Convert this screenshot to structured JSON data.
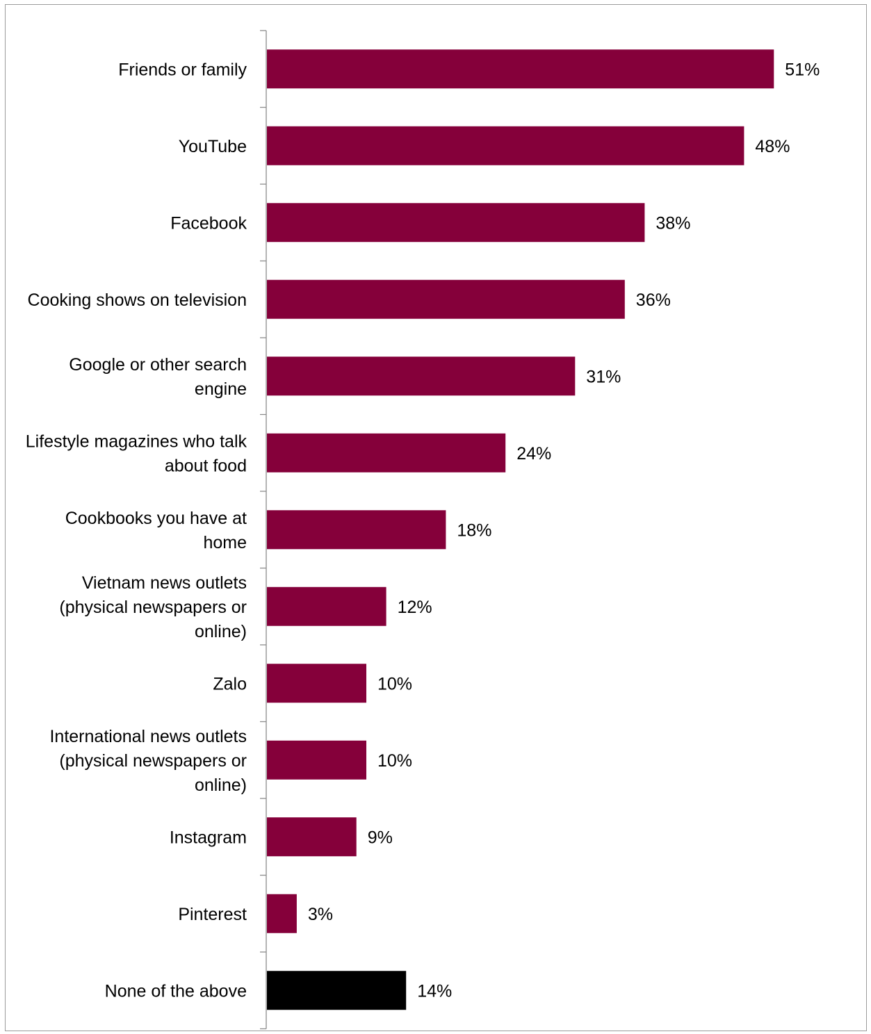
{
  "chart_data": {
    "type": "bar",
    "orientation": "horizontal",
    "categories": [
      "Friends or family",
      "YouTube",
      "Facebook",
      "Cooking shows on television",
      "Google or other search engine",
      "Lifestyle magazines who talk about food",
      "Cookbooks you have at home",
      "Vietnam news outlets (physical newspapers or online)",
      "Zalo",
      "International news outlets (physical newspapers or online)",
      "Instagram",
      "Pinterest",
      "None of the above"
    ],
    "category_lines": [
      [
        "Friends or family"
      ],
      [
        "YouTube"
      ],
      [
        "Facebook"
      ],
      [
        "Cooking shows on television"
      ],
      [
        "Google or other search",
        "engine"
      ],
      [
        "Lifestyle magazines who talk",
        "about food"
      ],
      [
        "Cookbooks you have at",
        "home"
      ],
      [
        "Vietnam news outlets",
        "(physical newspapers or",
        "online)"
      ],
      [
        "Zalo"
      ],
      [
        "International news outlets",
        "(physical newspapers or",
        "online)"
      ],
      [
        "Instagram"
      ],
      [
        "Pinterest"
      ],
      [
        "None of the above"
      ]
    ],
    "values": [
      51,
      48,
      38,
      36,
      31,
      24,
      18,
      12,
      10,
      10,
      9,
      3,
      14
    ],
    "data_labels": [
      "51%",
      "48%",
      "38%",
      "36%",
      "31%",
      "24%",
      "18%",
      "12%",
      "10%",
      "10%",
      "9%",
      "3%",
      "14%"
    ],
    "bar_colors": [
      "#85003A",
      "#85003A",
      "#85003A",
      "#85003A",
      "#85003A",
      "#85003A",
      "#85003A",
      "#85003A",
      "#85003A",
      "#85003A",
      "#85003A",
      "#85003A",
      "#000000"
    ],
    "xlim": [
      0,
      60
    ],
    "grid": false,
    "legend": "none",
    "title": "",
    "xlabel": "",
    "ylabel": ""
  }
}
